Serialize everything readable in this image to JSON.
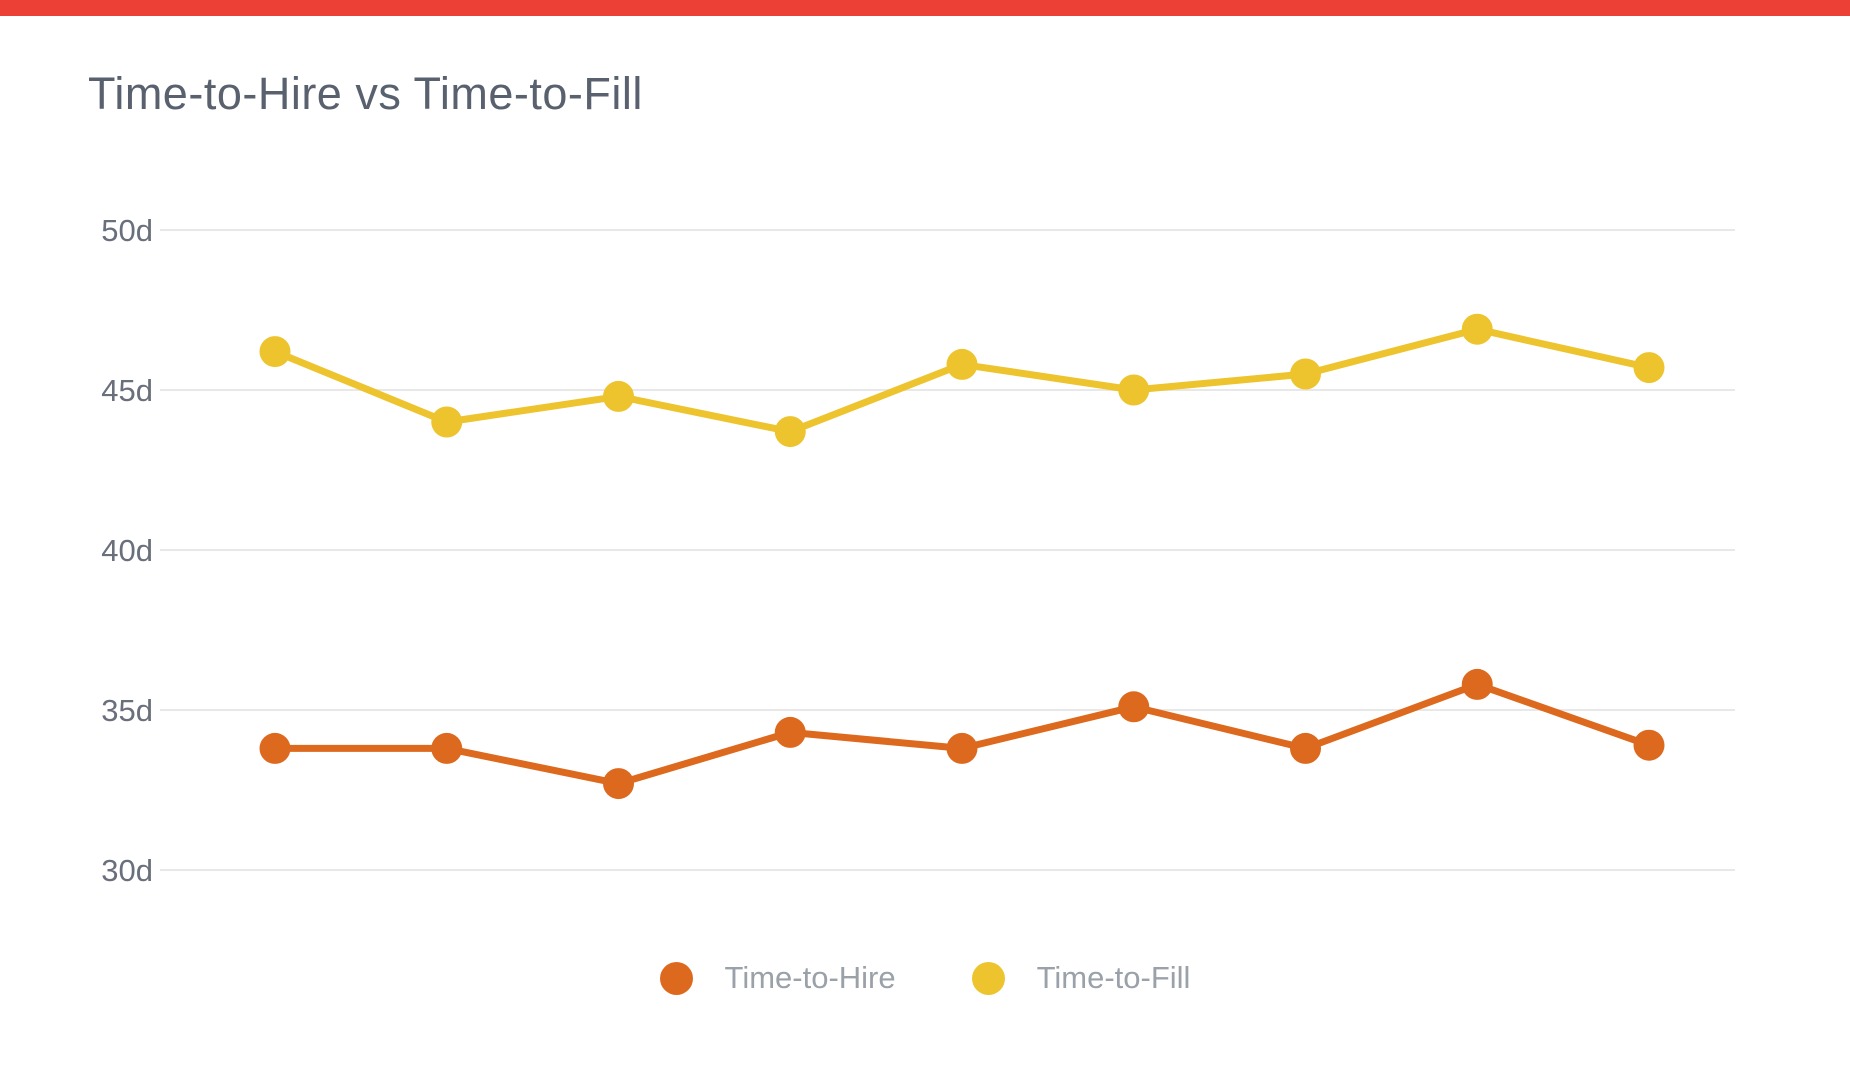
{
  "accent_bar": {
    "color": "#ec4036"
  },
  "title": "Time-to-Hire vs Time-to-Fill",
  "colors": {
    "background": "#ffffff",
    "title_text": "#59616e",
    "axis_text": "#696f7b",
    "legend_text": "#9aa1a9",
    "gridline": "#e8e8e8"
  },
  "chart_data": {
    "type": "line",
    "title": "Time-to-Hire vs Time-to-Fill",
    "unit": "days",
    "num_points": 9,
    "x_labels_visible": false,
    "grid": "horizontal",
    "legend_position": "bottom",
    "ylim": [
      30,
      50
    ],
    "y_ticks": [
      {
        "value": 50,
        "label": "50d"
      },
      {
        "value": 45,
        "label": "45d"
      },
      {
        "value": 40,
        "label": "40d"
      },
      {
        "value": 35,
        "label": "35d"
      },
      {
        "value": 30,
        "label": "30d"
      }
    ],
    "series": [
      {
        "name": "Time-to-Hire",
        "color": "#dc691d",
        "values": [
          33.8,
          33.8,
          32.7,
          34.3,
          33.8,
          35.1,
          33.8,
          35.8,
          33.9
        ]
      },
      {
        "name": "Time-to-Fill",
        "color": "#edc32e",
        "values": [
          46.2,
          44.0,
          44.8,
          43.7,
          45.8,
          45.0,
          45.5,
          46.9,
          45.7
        ]
      }
    ]
  }
}
